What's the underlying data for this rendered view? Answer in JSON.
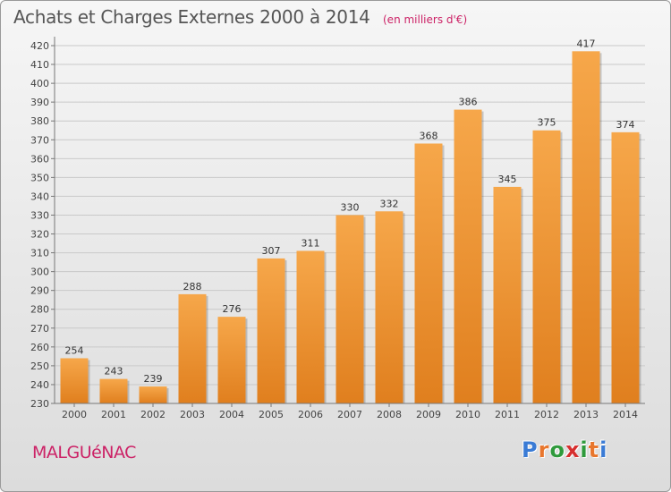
{
  "header": {
    "title": "Achats et Charges Externes 2000 à 2014",
    "subtitle": "(en milliers d'€)"
  },
  "footer": {
    "commune": "MALGUéNAC",
    "logo": "Proxiti"
  },
  "colors": {
    "bar_top": "#f6a74a",
    "bar_bottom": "#e07f1e",
    "title": "#555555",
    "accent": "#cc2266",
    "logo_letters": [
      "#3a7bd5",
      "#e8762d",
      "#2f9a3c",
      "#d62f2f",
      "#2f9a3c",
      "#e8762d",
      "#3a7bd5"
    ]
  },
  "chart_data": {
    "type": "bar",
    "categories": [
      "2000",
      "2001",
      "2002",
      "2003",
      "2004",
      "2005",
      "2006",
      "2007",
      "2008",
      "2009",
      "2010",
      "2011",
      "2012",
      "2013",
      "2014"
    ],
    "values": [
      254,
      243,
      239,
      288,
      276,
      307,
      311,
      330,
      332,
      368,
      386,
      345,
      375,
      417,
      374
    ],
    "ylim": [
      230,
      420
    ],
    "yticks": [
      230,
      240,
      250,
      260,
      270,
      280,
      290,
      300,
      310,
      320,
      330,
      340,
      350,
      360,
      370,
      380,
      390,
      400,
      410,
      420
    ],
    "grid": true
  }
}
